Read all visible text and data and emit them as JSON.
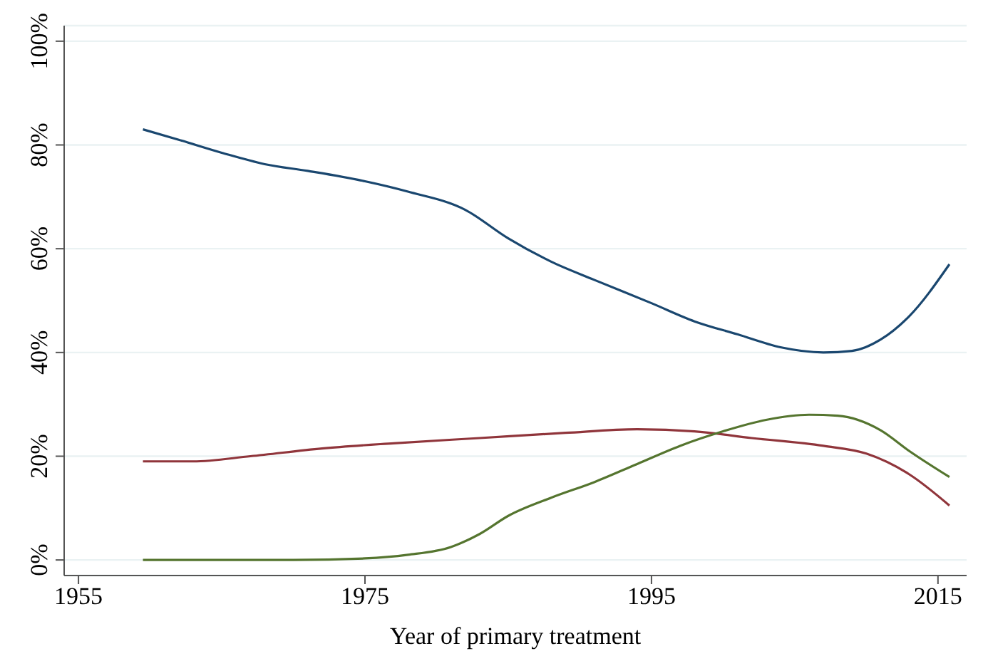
{
  "chart_data": {
    "type": "line",
    "xlabel": "Year of primary treatment",
    "xlim": [
      1954,
      2017
    ],
    "xticks": [
      1955,
      1975,
      1995,
      2015
    ],
    "ylim": [
      -3,
      103
    ],
    "yticks": [
      {
        "value": 0,
        "label": "0%"
      },
      {
        "value": 20,
        "label": "20%"
      },
      {
        "value": 40,
        "label": "40%"
      },
      {
        "value": 60,
        "label": "60%"
      },
      {
        "value": 80,
        "label": "80%"
      },
      {
        "value": 100,
        "label": "100%"
      }
    ],
    "grid": "y",
    "legend": false,
    "marker": "none",
    "line_style": "solid",
    "series": [
      {
        "color": "#1a476f",
        "x": [
          1959.5,
          1962,
          1965,
          1968,
          1971,
          1975,
          1978,
          1982,
          1985,
          1988,
          1991,
          1995,
          1998,
          2001,
          2004,
          2007,
          2009,
          2011,
          2013,
          2015.8
        ],
        "values": [
          83,
          81,
          78.5,
          76.3,
          75,
          73,
          71,
          67.5,
          62,
          57.5,
          54,
          49.5,
          46,
          43.5,
          41,
          40,
          40.3,
          42.5,
          47,
          57
        ]
      },
      {
        "color": "#90353b",
        "x": [
          1959.5,
          1963,
          1967,
          1972,
          1977,
          1983,
          1989,
          1994,
          1998,
          2002,
          2007,
          2010,
          2013,
          2015.8
        ],
        "values": [
          19,
          19,
          20,
          21.5,
          22.5,
          23.5,
          24.5,
          25.2,
          24.8,
          23.5,
          22,
          20.5,
          16.5,
          10.5
        ]
      },
      {
        "color": "#55752f",
        "x": [
          1959.5,
          1970,
          1975,
          1978,
          1981,
          1983,
          1985,
          1988,
          1991,
          1994,
          1997,
          2000,
          2003,
          2006,
          2008,
          2011,
          2013,
          2015.8
        ],
        "values": [
          0,
          0,
          0.3,
          1,
          2.5,
          5,
          8.5,
          12,
          15,
          18.5,
          22,
          24.8,
          27,
          28,
          27.8,
          25,
          21,
          16
        ]
      }
    ]
  }
}
